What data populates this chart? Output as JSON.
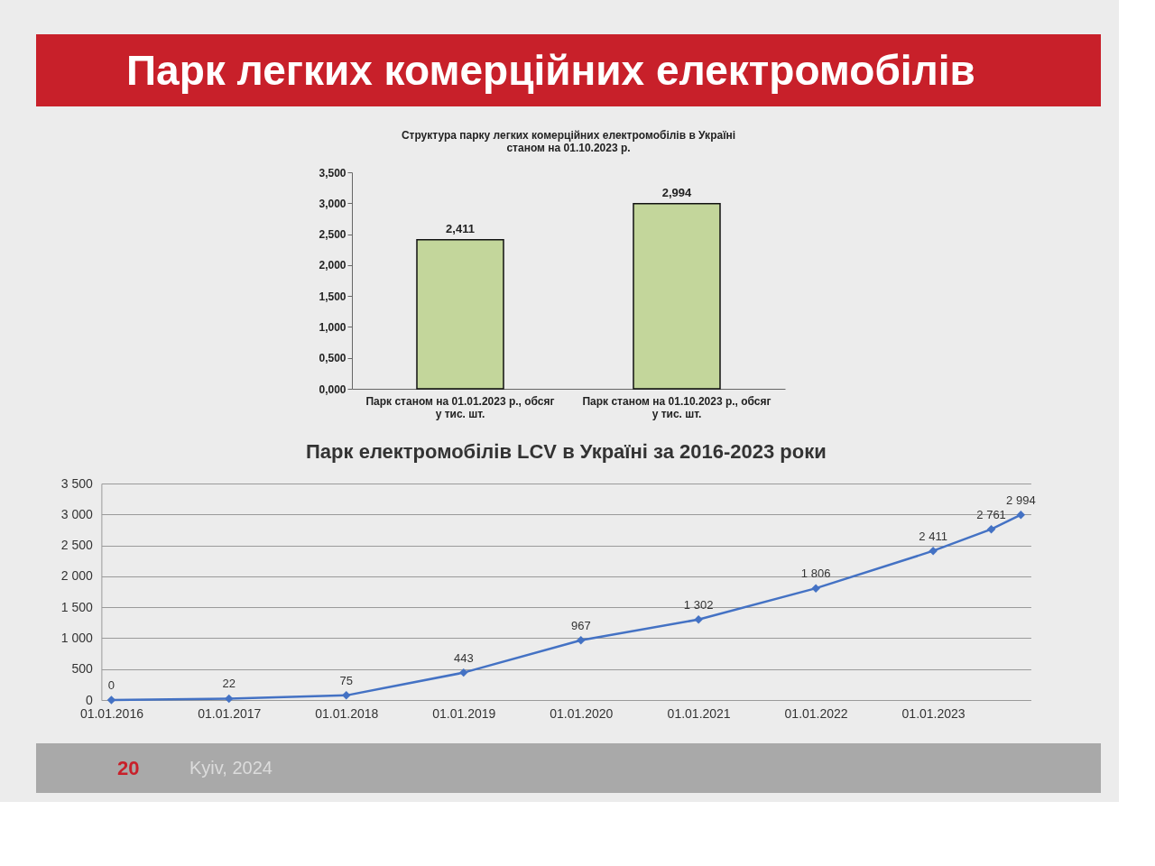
{
  "chart_data": [
    {
      "type": "other",
      "title": "Парк легких комерційних електромобілів",
      "annotations": [
        "20",
        "Kyiv, 2024"
      ]
    },
    {
      "type": "bar",
      "title": "Структура парку легких комерційних електромобілів в Україні станом на 01.10.2023 р.",
      "categories": [
        "Парк станом на 01.01.2023 р., обсяг у тис. шт.",
        "Парк станом на 01.10.2023 р., обсяг у тис. шт."
      ],
      "values": [
        2.411,
        2.994
      ],
      "value_labels": [
        "2,411",
        "2,994"
      ],
      "color": "#c3d69b",
      "ylim": [
        0,
        3.5
      ],
      "yticks": [
        {
          "value": 0,
          "label": "0,000"
        },
        {
          "value": 0.5,
          "label": "0,500"
        },
        {
          "value": 1,
          "label": "1,000"
        },
        {
          "value": 1.5,
          "label": "1,500"
        },
        {
          "value": 2,
          "label": "2,000"
        },
        {
          "value": 2.5,
          "label": "2,500"
        },
        {
          "value": 3,
          "label": "3,000"
        },
        {
          "value": 3.5,
          "label": "3,500"
        }
      ]
    },
    {
      "type": "line",
      "title": "Парк електромобілів LCV в Україні за 2016-2023 роки",
      "x": [
        "2016-01-01",
        "2017-01-01",
        "2018-01-01",
        "2019-01-01",
        "2020-01-01",
        "2021-01-01",
        "2022-01-01",
        "2023-01-01",
        "2023-07-01",
        "2023-10-01"
      ],
      "values": [
        0,
        22,
        75,
        443,
        967,
        1302,
        1806,
        2411,
        2761,
        2994
      ],
      "value_labels": [
        "0",
        "22",
        "75",
        "443",
        "967",
        "1 302",
        "1 806",
        "2 411",
        "2 761",
        "2 994"
      ],
      "color": "#4472c4",
      "marker": "diamond",
      "line_style": "solid",
      "xlim": [
        "2015-12-01",
        "2023-11-01"
      ],
      "xticks": [
        {
          "value": "2016-01-01",
          "label": "01.01.2016"
        },
        {
          "value": "2017-01-01",
          "label": "01.01.2017"
        },
        {
          "value": "2018-01-01",
          "label": "01.01.2018"
        },
        {
          "value": "2019-01-01",
          "label": "01.01.2019"
        },
        {
          "value": "2020-01-01",
          "label": "01.01.2020"
        },
        {
          "value": "2021-01-01",
          "label": "01.01.2021"
        },
        {
          "value": "2022-01-01",
          "label": "01.01.2022"
        },
        {
          "value": "2023-01-01",
          "label": "01.01.2023"
        }
      ],
      "ylim": [
        0,
        3500
      ],
      "yticks": [
        0,
        500,
        {
          "value": 1000,
          "label": "1 000"
        },
        {
          "value": 1500,
          "label": "1 500"
        },
        {
          "value": 2000,
          "label": "2 000"
        },
        {
          "value": 2500,
          "label": "2 500"
        },
        {
          "value": 3000,
          "label": "3 000"
        },
        {
          "value": 3500,
          "label": "3 500"
        }
      ],
      "grid": "y"
    }
  ]
}
